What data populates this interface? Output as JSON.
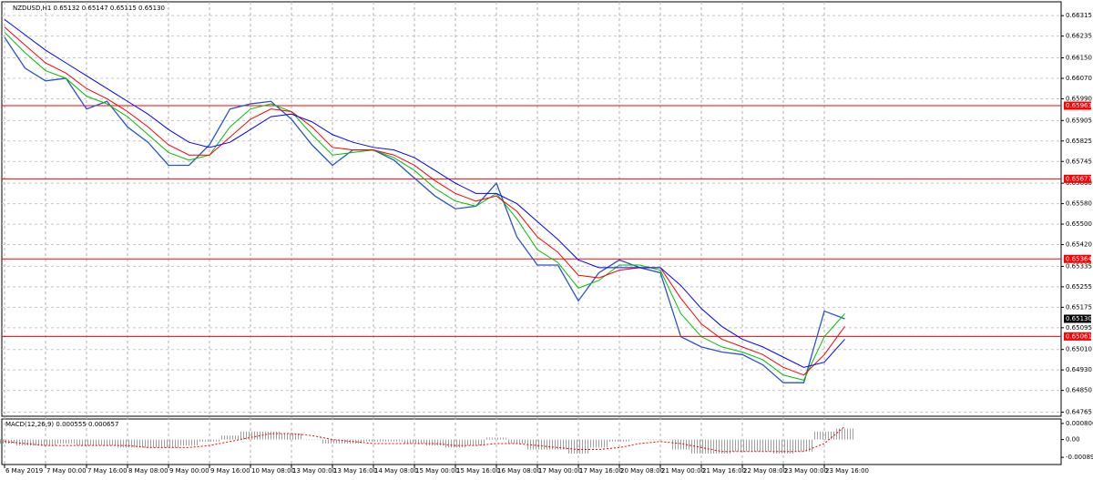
{
  "chart_data": [
    {
      "type": "line",
      "title": "NZDUSD,H1  0.65132 0.65147 0.65115 0.65130",
      "categories": [
        "6 May 2019",
        null,
        "7 May 00:00",
        null,
        "7 May 16:00",
        null,
        "8 May 08:00",
        null,
        "9 May 00:00",
        null,
        "9 May 16:00",
        null,
        "10 May 08:00",
        null,
        "13 May 00:00",
        null,
        "13 May 16:00",
        null,
        "14 May 08:00",
        null,
        "15 May 00:00",
        null,
        "15 May 16:00",
        null,
        "16 May 08:00",
        null,
        "17 May 00:00",
        null,
        "17 May 16:00",
        null,
        "20 May 08:00",
        null,
        "21 May 00:00",
        null,
        "21 May 16:00",
        null,
        "22 May 08:00",
        null,
        "23 May 00:00",
        null,
        "23 May 16:00",
        null
      ],
      "ylim": [
        0.64749,
        0.66369
      ],
      "yticks": [
        0.66315,
        0.66235,
        {
          "value": 0.6615,
          "label": "0.66150"
        },
        {
          "value": 0.6607,
          "label": "0.66070"
        },
        {
          "value": 0.6599,
          "label": "0.65990"
        },
        0.65905,
        0.65825,
        0.65745,
        {
          "value": 0.6566,
          "label": "0.65660"
        },
        {
          "value": 0.6558,
          "label": "0.65580"
        },
        {
          "value": 0.655,
          "label": "0.65500"
        },
        {
          "value": 0.6542,
          "label": "0.65420"
        },
        0.65335,
        0.65255,
        0.65175,
        0.65095,
        {
          "value": 0.6501,
          "label": "0.65010"
        },
        {
          "value": 0.6493,
          "label": "0.64930"
        },
        {
          "value": 0.6485,
          "label": "0.64850"
        },
        0.64765
      ],
      "grid": true,
      "series": [
        {
          "color": "#2a55c8",
          "values": [
            0.6623,
            0.6611,
            0.6606,
            0.6607,
            0.6595,
            0.6598,
            0.6588,
            0.6582,
            0.6573,
            0.6573,
            0.6581,
            0.6595,
            0.6597,
            0.6598,
            0.6591,
            0.6581,
            0.6573,
            0.6579,
            0.6579,
            0.6575,
            0.6568,
            0.6561,
            0.6556,
            0.6557,
            0.6566,
            0.6545,
            0.6534,
            0.6534,
            0.652,
            0.6531,
            0.6536,
            0.6533,
            0.6531,
            0.6506,
            0.6502,
            0.65,
            0.6499,
            0.6495,
            0.6488,
            0.6488,
            0.6516,
            0.6513
          ]
        },
        {
          "color": "#00c000",
          "values": [
            0.6625,
            0.6617,
            0.661,
            0.6607,
            0.66,
            0.6597,
            0.6592,
            0.6585,
            0.6578,
            0.6575,
            0.6577,
            0.6588,
            0.6595,
            0.6597,
            0.6594,
            0.6585,
            0.6577,
            0.6578,
            0.6579,
            0.6576,
            0.6571,
            0.6564,
            0.6559,
            0.6557,
            0.6562,
            0.6552,
            0.654,
            0.6535,
            0.6525,
            0.6528,
            0.6534,
            0.6534,
            0.6532,
            0.6515,
            0.6506,
            0.6502,
            0.65,
            0.6497,
            0.6491,
            0.6489,
            0.6506,
            0.6515
          ]
        },
        {
          "color": "#ff0000",
          "values": [
            0.6627,
            0.662,
            0.6613,
            0.6609,
            0.6603,
            0.6599,
            0.6594,
            0.6588,
            0.6581,
            0.6577,
            0.6577,
            0.6584,
            0.6591,
            0.6595,
            0.6594,
            0.6588,
            0.658,
            0.6579,
            0.6579,
            0.6577,
            0.6573,
            0.6567,
            0.6562,
            0.6559,
            0.6561,
            0.6555,
            0.6545,
            0.6539,
            0.653,
            0.6529,
            0.6532,
            0.6533,
            0.6533,
            0.6521,
            0.6511,
            0.6505,
            0.6502,
            0.6499,
            0.6494,
            0.6491,
            0.6499,
            0.651
          ]
        },
        {
          "color": "#0000ff",
          "values": [
            0.663,
            0.6624,
            0.6618,
            0.6613,
            0.6608,
            0.6603,
            0.6598,
            0.6593,
            0.6587,
            0.6582,
            0.658,
            0.6582,
            0.6587,
            0.6592,
            0.6593,
            0.659,
            0.6585,
            0.6582,
            0.658,
            0.6579,
            0.6576,
            0.6571,
            0.6566,
            0.6562,
            0.6562,
            0.6558,
            0.6551,
            0.6544,
            0.6536,
            0.6533,
            0.6533,
            0.6533,
            0.6533,
            0.6526,
            0.6517,
            0.651,
            0.6505,
            0.6502,
            0.6498,
            0.6494,
            0.6496,
            0.6505
          ]
        }
      ],
      "levels": [
        0.65963,
        0.65677,
        0.65364,
        0.65061
      ],
      "level_color": "#ff0000",
      "last_price": {
        "value": 0.6513,
        "label": "0.65130"
      }
    },
    {
      "type": "macd",
      "title": "MACD(12,26,9) 0.000555 0.000657",
      "ylim": [
        -0.00125,
        0.00103
      ],
      "yticks": [
        0.000806,
        {
          "value": 0,
          "label": "0.00"
        },
        -0.000891
      ],
      "series": [
        {
          "color": "#a0a0a0",
          "values": [
            -0.0002,
            -0.0003,
            -0.0003,
            -0.0002,
            -0.0003,
            -0.0003,
            -0.0004,
            -0.0004,
            -0.0004,
            -0.0003,
            -0.0001,
            0.0002,
            0.0004,
            0.0004,
            0.0003,
            0,
            -0.0002,
            -0.0002,
            -0.0001,
            -0.0001,
            -0.0002,
            -0.0003,
            -0.0004,
            -0.0003,
            0.0001,
            -0.0002,
            -0.0005,
            -0.0005,
            -0.0007,
            -0.0004,
            -0.0001,
            0,
            0,
            -0.0005,
            -0.0007,
            -0.0007,
            -0.0006,
            -0.0006,
            -0.0007,
            -0.0006,
            0.0004,
            0.000555
          ]
        },
        {
          "color": "#ff0000",
          "values": [
            -0.0001,
            -0.0002,
            -0.0003,
            -0.0003,
            -0.0003,
            -0.0003,
            -0.0003,
            -0.0004,
            -0.0004,
            -0.0004,
            -0.0003,
            -0.0001,
            0.0001,
            0.0003,
            0.0003,
            0.0002,
            0,
            -0.0001,
            -0.0002,
            -0.0002,
            -0.0002,
            -0.0002,
            -0.0003,
            -0.0003,
            -0.0002,
            -0.0002,
            -0.0003,
            -0.0004,
            -0.0005,
            -0.0005,
            -0.0004,
            -0.0002,
            -0.0001,
            -0.0002,
            -0.0004,
            -0.0006,
            -0.0006,
            -0.0006,
            -0.0006,
            -0.0006,
            -0.0002,
            0.000657
          ]
        }
      ]
    }
  ]
}
